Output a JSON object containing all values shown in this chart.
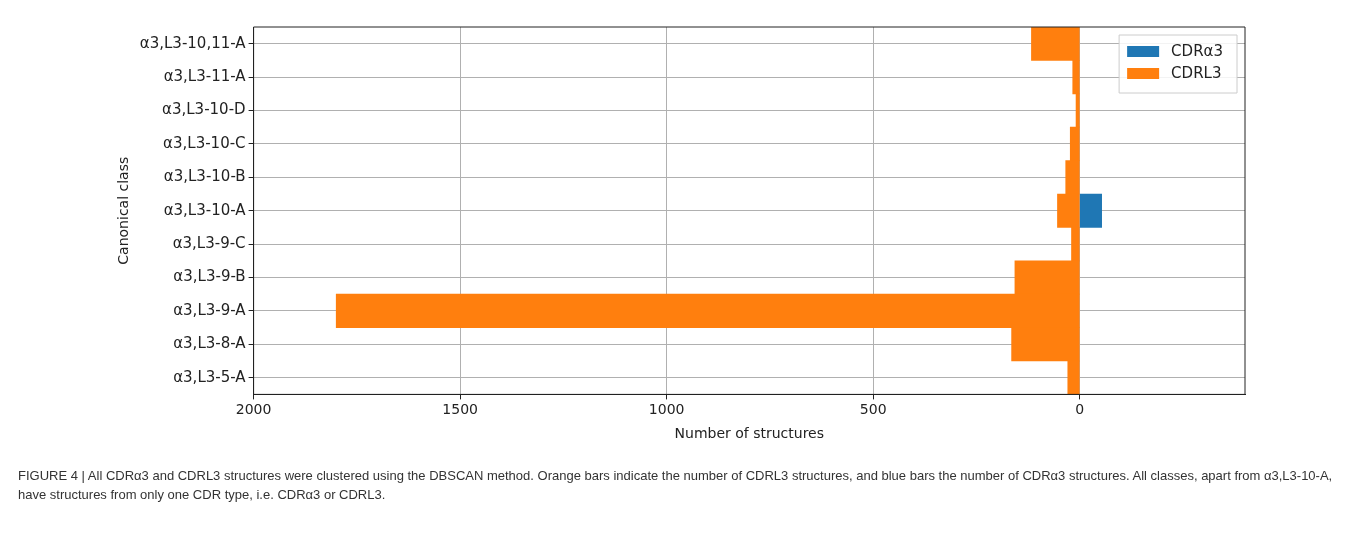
{
  "chart_data": {
    "type": "bar",
    "orientation": "horizontal",
    "xlabel": "Number of structures",
    "ylabel": "Canonical class",
    "categories": [
      "α3,L3-10,11-A",
      "α3,L3-11-A",
      "α3,L3-10-D",
      "α3,L3-10-C",
      "α3,L3-10-B",
      "α3,L3-10-A",
      "α3,L3-9-C",
      "α3,L3-9-B",
      "α3,L3-9-A",
      "α3,L3-8-A",
      "α3,L3-5-A"
    ],
    "series": [
      {
        "name": "CDRα3",
        "color": "#1f77b4",
        "values": [
          null,
          null,
          null,
          null,
          null,
          -53,
          null,
          null,
          null,
          null,
          null
        ]
      },
      {
        "name": "CDRL3",
        "color": "#ff7f0e",
        "values": [
          117,
          17,
          9,
          23,
          34,
          54,
          20,
          157,
          1800,
          165,
          29
        ]
      }
    ],
    "xlim": [
      2000,
      -400
    ],
    "xticks": [
      2000,
      1500,
      1000,
      500,
      0
    ],
    "grid": true,
    "legend": "top right",
    "annotations": [
      "FIGURE 4 | All CDRα3 and CDRL3 structures were clustered using the DBSCAN method. Orange bars indicate the number of CDRL3 structures, and blue bars the number of CDRα3 structures. All classes, apart from α3,L3-10-A, have structures from only one CDR type, i.e. CDRα3 or CDRL3."
    ]
  }
}
